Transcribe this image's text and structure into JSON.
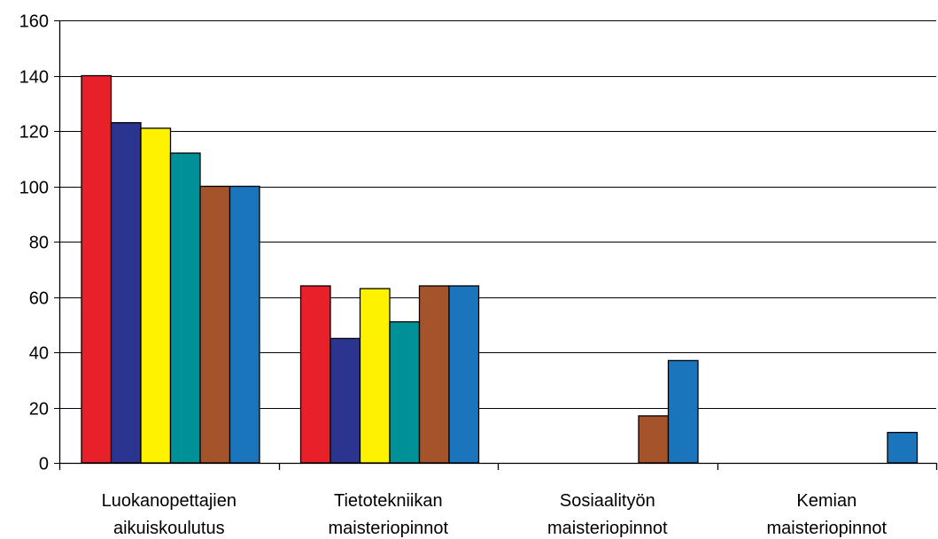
{
  "chart_data": {
    "type": "bar",
    "title": "",
    "xlabel": "",
    "ylabel": "",
    "ylim": [
      0,
      160
    ],
    "yticks": [
      0,
      20,
      40,
      60,
      80,
      100,
      120,
      140,
      160
    ],
    "ytick_labels": [
      "0",
      "20",
      "40",
      "60",
      "80",
      "100",
      "120",
      "140",
      "160"
    ],
    "grid": true,
    "categories": [
      [
        "Luokanopettajien",
        "aikuiskoulutus"
      ],
      [
        "Tietotekniikan",
        "maisteriopinnot"
      ],
      [
        "Sosiaalityön",
        "maisteriopinnot"
      ],
      [
        "Kemian",
        "maisteriopinnot"
      ]
    ],
    "series": [
      {
        "color": "#e8202a",
        "values": [
          140,
          64,
          0,
          0
        ]
      },
      {
        "color": "#2b3590",
        "values": [
          123,
          45,
          0,
          0
        ]
      },
      {
        "color": "#fff200",
        "values": [
          121,
          63,
          0,
          0
        ]
      },
      {
        "color": "#009098",
        "values": [
          112,
          51,
          0,
          0
        ]
      },
      {
        "color": "#a5532a",
        "values": [
          100,
          64,
          17,
          0
        ]
      },
      {
        "color": "#1b75bc",
        "values": [
          100,
          64,
          37,
          11
        ]
      }
    ]
  }
}
